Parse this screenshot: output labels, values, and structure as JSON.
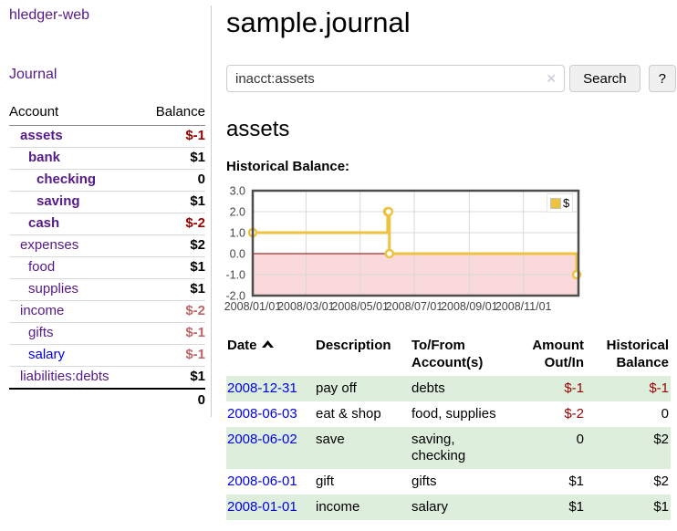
{
  "app": {
    "brand": "hledger-web"
  },
  "sidebar": {
    "nav": [
      {
        "label": "Journal"
      }
    ],
    "accounts": {
      "header": {
        "account": "Account",
        "balance": "Balance"
      },
      "rows": [
        {
          "name": "assets",
          "depth": 1,
          "bold": true,
          "link_color": "purple",
          "balance": "$-1",
          "balance_style": "neg-strong"
        },
        {
          "name": "bank",
          "depth": 2,
          "bold": true,
          "link_color": "purple",
          "balance": "$1",
          "balance_style": ""
        },
        {
          "name": "checking",
          "depth": 3,
          "bold": true,
          "link_color": "purple",
          "balance": "0",
          "balance_style": ""
        },
        {
          "name": "saving",
          "depth": 3,
          "bold": true,
          "link_color": "purple",
          "balance": "$1",
          "balance_style": ""
        },
        {
          "name": "cash",
          "depth": 2,
          "bold": true,
          "link_color": "purple",
          "balance": "$-2",
          "balance_style": "neg-strong"
        },
        {
          "name": "expenses",
          "depth": 1,
          "bold": false,
          "link_color": "purple",
          "balance": "$2",
          "balance_style": ""
        },
        {
          "name": "food",
          "depth": 2,
          "bold": false,
          "link_color": "purple",
          "balance": "$1",
          "balance_style": ""
        },
        {
          "name": "supplies",
          "depth": 2,
          "bold": false,
          "link_color": "purple",
          "balance": "$1",
          "balance_style": ""
        },
        {
          "name": "income",
          "depth": 1,
          "bold": false,
          "link_color": "purple",
          "balance": "$-2",
          "balance_style": "neg-soft"
        },
        {
          "name": "gifts",
          "depth": 2,
          "bold": false,
          "link_color": "purple",
          "balance": "$-1",
          "balance_style": "neg-soft"
        },
        {
          "name": "salary",
          "depth": 2,
          "bold": false,
          "link_color": "blue",
          "balance": "$-1",
          "balance_style": "neg-soft"
        },
        {
          "name": "liabilities:debts",
          "depth": 1,
          "bold": false,
          "link_color": "purple",
          "balance": "$1",
          "balance_style": ""
        }
      ],
      "total": "0"
    }
  },
  "page": {
    "title": "sample.journal"
  },
  "search": {
    "value": "inacct:assets",
    "clear_icon": "✕",
    "button_label": "Search",
    "help_button_label": "?"
  },
  "account_view": {
    "heading": "assets",
    "chart_title": "Historical Balance:"
  },
  "chart_data": {
    "type": "line",
    "title": "Historical Balance:",
    "line_style": "step-after",
    "series": [
      {
        "name": "$",
        "color": "#edc240",
        "points": [
          {
            "date": "2008-01-01",
            "day": 0,
            "value": 1
          },
          {
            "date": "2008-06-01",
            "day": 152,
            "value": 2
          },
          {
            "date": "2008-06-02",
            "day": 153,
            "value": 2
          },
          {
            "date": "2008-06-03",
            "day": 154,
            "value": 0
          },
          {
            "date": "2008-12-31",
            "day": 365,
            "value": -1
          }
        ]
      }
    ],
    "x_axis": {
      "min_day": 0,
      "max_day": 367,
      "ticks": [
        {
          "day": 0,
          "label": "2008/01/01"
        },
        {
          "day": 60,
          "label": "2008/03/01"
        },
        {
          "day": 121,
          "label": "2008/05/01"
        },
        {
          "day": 182,
          "label": "2008/07/01"
        },
        {
          "day": 244,
          "label": "2008/09/01"
        },
        {
          "day": 305,
          "label": "2008/11/01"
        }
      ]
    },
    "y_axis": {
      "min": -2,
      "max": 3,
      "ticks": [
        3.0,
        2.0,
        1.0,
        0.0,
        -1.0,
        -2.0
      ]
    },
    "legend": {
      "label": "$",
      "position": "top-right"
    },
    "grid": true,
    "colors": {
      "series": "#edc240",
      "negative_region_fill": "#f9d9d9",
      "zero_line": "#8b0000",
      "grid": "#d8d8d8",
      "plot_border": "#4d4d4d"
    }
  },
  "register": {
    "headers": [
      {
        "label": "Date",
        "sort": "ascending",
        "sort_icon": "caret-up-icon"
      },
      {
        "label": "Description"
      },
      {
        "label": "To/From Account(s)"
      },
      {
        "label": "Amount Out/In",
        "align": "right"
      },
      {
        "label": "Historical Balance",
        "align": "right"
      }
    ],
    "rows": [
      {
        "date": "2008-12-31",
        "description": "pay off",
        "accounts": "debts",
        "amount": "$-1",
        "amount_negative": true,
        "balance": "$-1",
        "balance_negative": true
      },
      {
        "date": "2008-06-03",
        "description": "eat & shop",
        "accounts": "food, supplies",
        "amount": "$-2",
        "amount_negative": true,
        "balance": "0",
        "balance_negative": false
      },
      {
        "date": "2008-06-02",
        "description": "save",
        "accounts": "saving, checking",
        "amount": "0",
        "amount_negative": false,
        "balance": "$2",
        "balance_negative": false
      },
      {
        "date": "2008-06-01",
        "description": "gift",
        "accounts": "gifts",
        "amount": "$1",
        "amount_negative": false,
        "balance": "$2",
        "balance_negative": false
      },
      {
        "date": "2008-01-01",
        "description": "income",
        "accounts": "salary",
        "amount": "$1",
        "amount_negative": false,
        "balance": "$1",
        "balance_negative": false
      }
    ]
  },
  "colors": {
    "link_purple": "#551a8b",
    "link_blue": "#0000ee",
    "negative_strong": "#990000",
    "negative_soft": "#c06666",
    "row_stripe_green": "#ddeedd"
  }
}
